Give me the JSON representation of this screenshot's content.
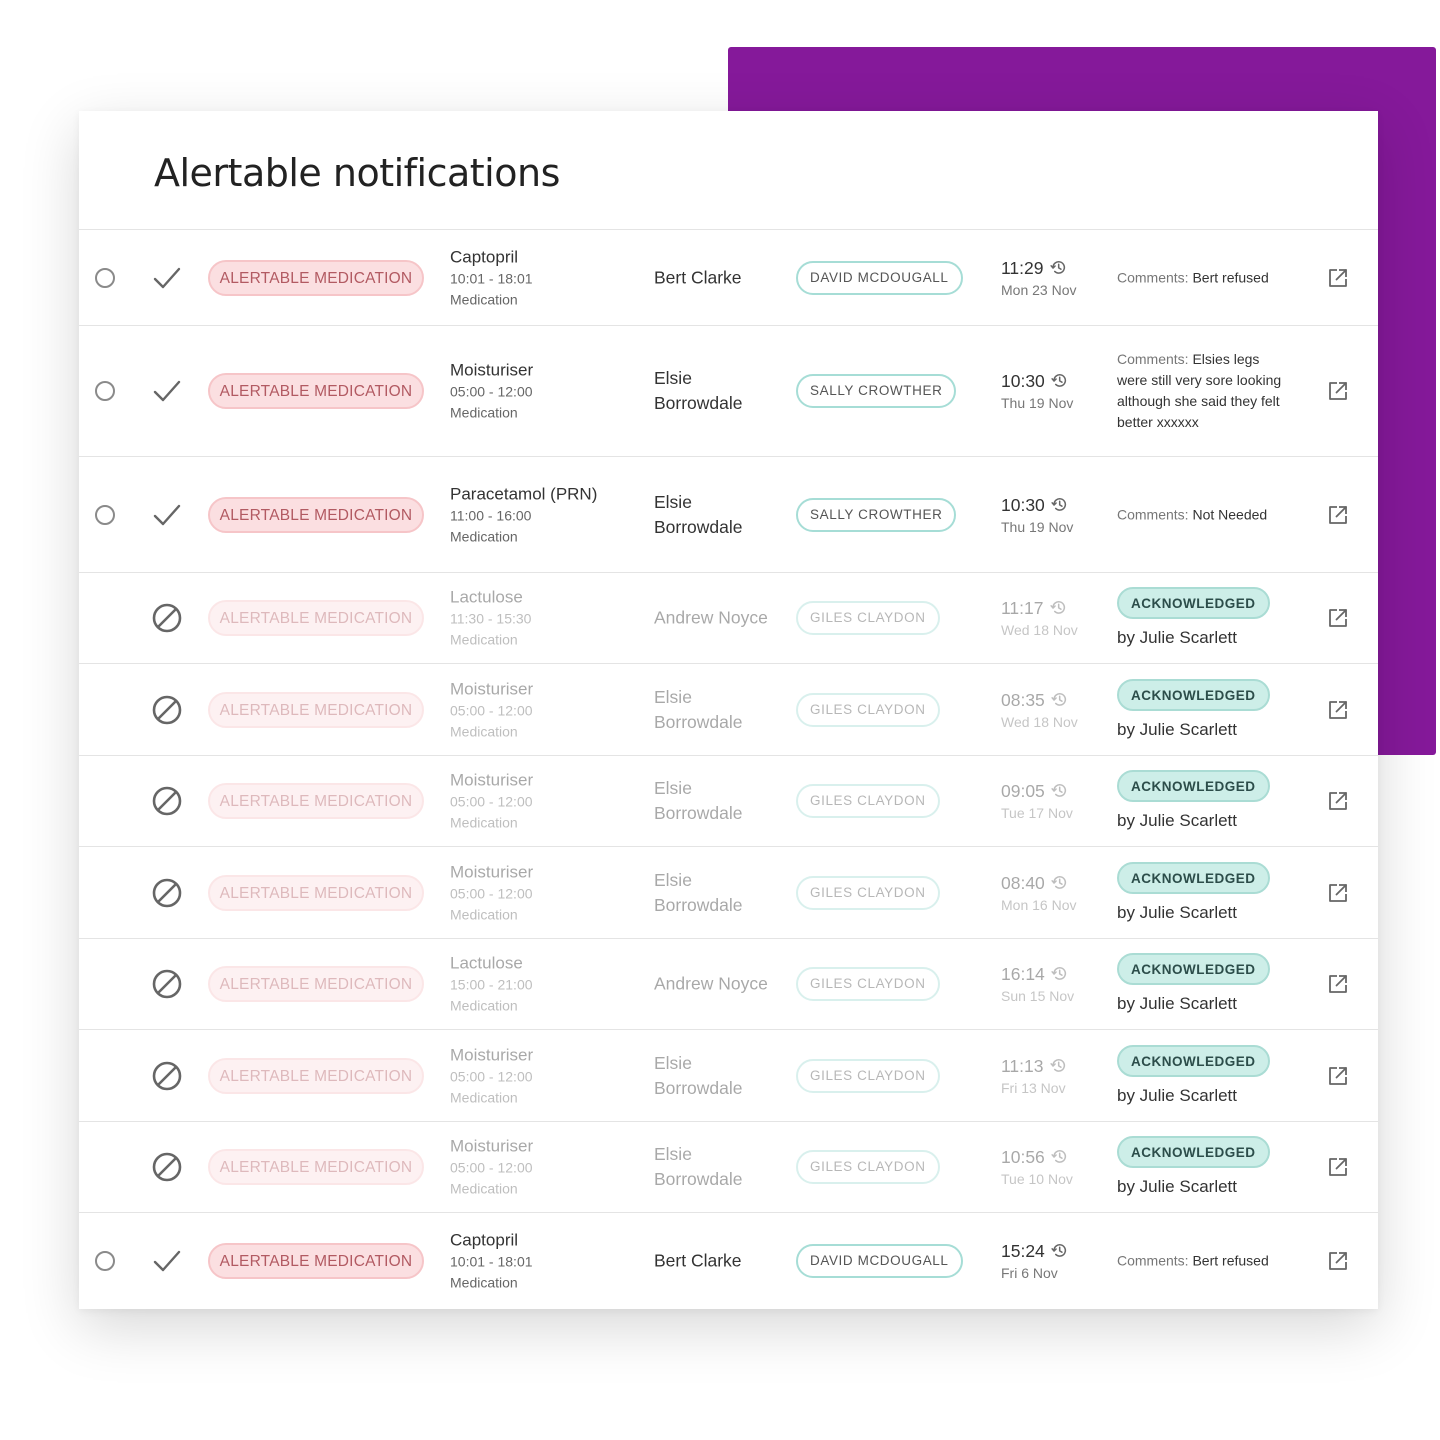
{
  "title": "Alertable notifications",
  "colors": {
    "accent_purple": "#85199a",
    "tag_bg": "#fbdfe1",
    "staff_border": "#a6ddd6",
    "ack_bg": "#cdeee8"
  },
  "rows": [
    {
      "status": "pending",
      "tag": "ALERTABLE MEDICATION",
      "med_name": "Captopril",
      "med_time": "10:01 - 18:01",
      "med_type": "Medication",
      "patient": "Bert Clarke",
      "staff": "DAVID MCDOUGALL",
      "time": "11:29",
      "date": "Mon 23 Nov",
      "comment_label": "Comments:",
      "comment": "Bert refused"
    },
    {
      "status": "pending",
      "tag": "ALERTABLE MEDICATION",
      "med_name": "Moisturiser",
      "med_time": "05:00 - 12:00",
      "med_type": "Medication",
      "patient": "Elsie Borrowdale",
      "staff": "SALLY CROWTHER",
      "time": "10:30",
      "date": "Thu 19 Nov",
      "comment_label": "Comments:",
      "comment": "Elsies legs were still very sore looking although she said they felt better xxxxxx"
    },
    {
      "status": "pending",
      "tag": "ALERTABLE MEDICATION",
      "med_name": "Paracetamol (PRN)",
      "med_time": "11:00 - 16:00",
      "med_type": "Medication",
      "patient": "Elsie Borrowdale",
      "staff": "SALLY CROWTHER",
      "time": "10:30",
      "date": "Thu 19 Nov",
      "comment_label": "Comments:",
      "comment": "Not Needed"
    },
    {
      "status": "acknowledged",
      "tag": "ALERTABLE MEDICATION",
      "med_name": "Lactulose",
      "med_time": "11:30 - 15:30",
      "med_type": "Medication",
      "patient": "Andrew Noyce",
      "staff": "GILES CLAYDON",
      "time": "11:17",
      "date": "Wed 18 Nov",
      "ack_label": "ACKNOWLEDGED",
      "ack_by": "by Julie Scarlett"
    },
    {
      "status": "acknowledged",
      "tag": "ALERTABLE MEDICATION",
      "med_name": "Moisturiser",
      "med_time": "05:00 - 12:00",
      "med_type": "Medication",
      "patient": "Elsie Borrowdale",
      "staff": "GILES CLAYDON",
      "time": "08:35",
      "date": "Wed 18 Nov",
      "ack_label": "ACKNOWLEDGED",
      "ack_by": "by Julie Scarlett"
    },
    {
      "status": "acknowledged",
      "tag": "ALERTABLE MEDICATION",
      "med_name": "Moisturiser",
      "med_time": "05:00 - 12:00",
      "med_type": "Medication",
      "patient": "Elsie Borrowdale",
      "staff": "GILES CLAYDON",
      "time": "09:05",
      "date": "Tue 17 Nov",
      "ack_label": "ACKNOWLEDGED",
      "ack_by": "by Julie Scarlett"
    },
    {
      "status": "acknowledged",
      "tag": "ALERTABLE MEDICATION",
      "med_name": "Moisturiser",
      "med_time": "05:00 - 12:00",
      "med_type": "Medication",
      "patient": "Elsie Borrowdale",
      "staff": "GILES CLAYDON",
      "time": "08:40",
      "date": "Mon 16 Nov",
      "ack_label": "ACKNOWLEDGED",
      "ack_by": "by Julie Scarlett"
    },
    {
      "status": "acknowledged",
      "tag": "ALERTABLE MEDICATION",
      "med_name": "Lactulose",
      "med_time": "15:00 - 21:00",
      "med_type": "Medication",
      "patient": "Andrew Noyce",
      "staff": "GILES CLAYDON",
      "time": "16:14",
      "date": "Sun 15 Nov",
      "ack_label": "ACKNOWLEDGED",
      "ack_by": "by Julie Scarlett"
    },
    {
      "status": "acknowledged",
      "tag": "ALERTABLE MEDICATION",
      "med_name": "Moisturiser",
      "med_time": "05:00 - 12:00",
      "med_type": "Medication",
      "patient": "Elsie Borrowdale",
      "staff": "GILES CLAYDON",
      "time": "11:13",
      "date": "Fri 13 Nov",
      "ack_label": "ACKNOWLEDGED",
      "ack_by": "by Julie Scarlett"
    },
    {
      "status": "acknowledged",
      "tag": "ALERTABLE MEDICATION",
      "med_name": "Moisturiser",
      "med_time": "05:00 - 12:00",
      "med_type": "Medication",
      "patient": "Elsie Borrowdale",
      "staff": "GILES CLAYDON",
      "time": "10:56",
      "date": "Tue 10 Nov",
      "ack_label": "ACKNOWLEDGED",
      "ack_by": "by Julie Scarlett"
    },
    {
      "status": "pending",
      "tag": "ALERTABLE MEDICATION",
      "med_name": "Captopril",
      "med_time": "10:01 - 18:01",
      "med_type": "Medication",
      "patient": "Bert Clarke",
      "staff": "DAVID MCDOUGALL",
      "time": "15:24",
      "date": "Fri 6 Nov",
      "comment_label": "Comments:",
      "comment": "Bert refused"
    }
  ]
}
